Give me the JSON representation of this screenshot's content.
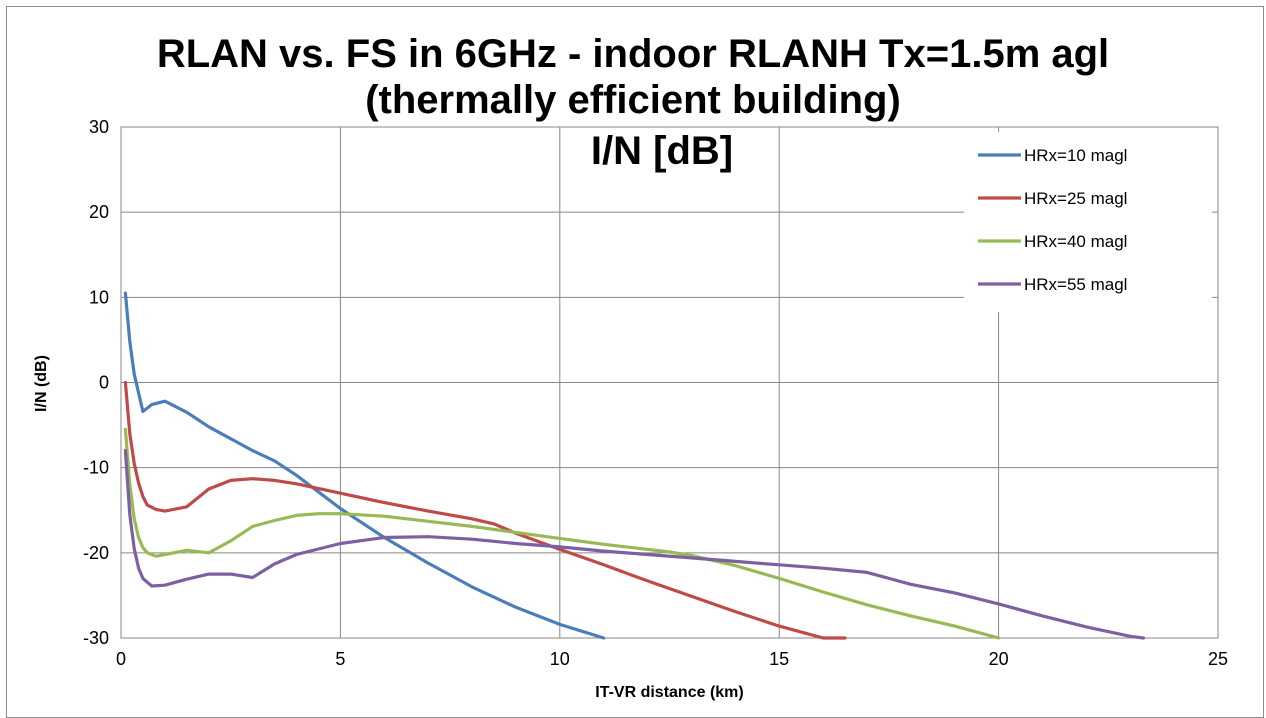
{
  "chart_data": {
    "type": "line",
    "title_lines": [
      "RLAN vs. FS in 6GHz - indoor RLANH Tx=1.5m agl",
      "(thermally efficient building)",
      "I/N [dB]"
    ],
    "xlabel": "IT-VR distance (km)",
    "ylabel": "I/N (dB)",
    "xlim": [
      0,
      25
    ],
    "ylim": [
      -30,
      30
    ],
    "xticks": [
      0,
      5,
      10,
      15,
      20,
      25
    ],
    "yticks": [
      -30,
      -20,
      -10,
      0,
      10,
      20,
      30
    ],
    "grid": true,
    "legend_position": "top-right",
    "series": [
      {
        "name": "HRx=10 magl",
        "color": "#4a7ebb",
        "x": [
          0.1,
          0.2,
          0.3,
          0.5,
          0.7,
          1.0,
          1.5,
          2.0,
          3.0,
          3.5,
          4.0,
          5.0,
          6.0,
          7.0,
          8.0,
          9.0,
          10.0,
          11.0
        ],
        "y": [
          10.5,
          4.8,
          1.0,
          -3.4,
          -2.6,
          -2.2,
          -3.5,
          -5.2,
          -8.0,
          -9.2,
          -10.9,
          -14.8,
          -18.2,
          -21.2,
          -24.0,
          -26.4,
          -28.4,
          -30.0
        ]
      },
      {
        "name": "HRx=25 magl",
        "color": "#be4b48",
        "x": [
          0.1,
          0.2,
          0.3,
          0.4,
          0.5,
          0.6,
          0.8,
          1.0,
          1.5,
          2.0,
          2.5,
          3.0,
          3.5,
          4.0,
          5.0,
          6.0,
          7.0,
          8.0,
          8.5,
          9.0,
          10.0,
          11.0,
          12.0,
          13.0,
          14.0,
          15.0,
          16.0,
          16.5
        ],
        "y": [
          0.0,
          -6.0,
          -9.5,
          -11.8,
          -13.4,
          -14.4,
          -14.9,
          -15.1,
          -14.6,
          -12.5,
          -11.5,
          -11.3,
          -11.5,
          -11.9,
          -13.0,
          -14.1,
          -15.1,
          -16.0,
          -16.6,
          -17.7,
          -19.6,
          -21.4,
          -23.3,
          -25.1,
          -26.9,
          -28.6,
          -30.0,
          -30.4
        ]
      },
      {
        "name": "HRx=40 magl",
        "color": "#98b954",
        "x": [
          0.1,
          0.2,
          0.3,
          0.4,
          0.5,
          0.6,
          0.8,
          1.0,
          1.5,
          2.0,
          2.5,
          3.0,
          3.5,
          4.0,
          4.5,
          5.0,
          6.0,
          7.0,
          8.0,
          9.0,
          10.0,
          11.0,
          12.0,
          12.5,
          13.0,
          14.0,
          15.0,
          16.0,
          17.0,
          18.0,
          19.0,
          20.0
        ],
        "y": [
          -5.5,
          -12.0,
          -16.0,
          -18.2,
          -19.4,
          -20.0,
          -20.4,
          -20.2,
          -19.7,
          -20.0,
          -18.6,
          -16.9,
          -16.2,
          -15.6,
          -15.4,
          -15.4,
          -15.7,
          -16.3,
          -16.9,
          -17.6,
          -18.3,
          -19.0,
          -19.6,
          -19.9,
          -20.3,
          -21.5,
          -23.0,
          -24.6,
          -26.1,
          -27.4,
          -28.6,
          -30.0
        ]
      },
      {
        "name": "HRx=55 magl",
        "color": "#7d60a0",
        "x": [
          0.1,
          0.2,
          0.3,
          0.4,
          0.5,
          0.7,
          1.0,
          1.5,
          2.0,
          2.5,
          3.0,
          3.5,
          4.0,
          5.0,
          6.0,
          7.0,
          8.0,
          9.0,
          10.0,
          11.0,
          12.0,
          13.0,
          14.0,
          15.0,
          16.0,
          17.0,
          18.0,
          19.0,
          20.0,
          21.0,
          22.0,
          23.0,
          23.3
        ],
        "y": [
          -8.0,
          -15.5,
          -19.5,
          -21.8,
          -23.0,
          -23.9,
          -23.8,
          -23.1,
          -22.5,
          -22.5,
          -22.9,
          -21.3,
          -20.2,
          -18.9,
          -18.2,
          -18.1,
          -18.4,
          -18.9,
          -19.3,
          -19.8,
          -20.2,
          -20.6,
          -21.0,
          -21.4,
          -21.8,
          -22.3,
          -23.7,
          -24.7,
          -26.0,
          -27.4,
          -28.7,
          -29.8,
          -30.1
        ]
      }
    ]
  }
}
